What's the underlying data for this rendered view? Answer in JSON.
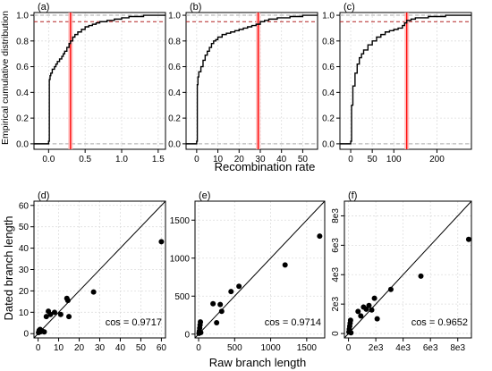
{
  "figure": {
    "top_ylabel": "Empirical cumulative distribution",
    "top_xlabel": "Recombination rate",
    "bottom_ylabel": "Dated branch length",
    "bottom_xlabel": "Raw branch length"
  },
  "colors": {
    "line": "#000000",
    "true_value": "#ff0000",
    "true_band": "#ffb3b3",
    "quantile_line": "#b22222",
    "reference": "#aaaaaa",
    "grid": "#dddddd"
  },
  "chart_data": [
    {
      "type": "line",
      "panel": "(a)",
      "xlim": [
        -0.2,
        1.6
      ],
      "ylim": [
        0,
        1.0
      ],
      "xticks": [
        0.0,
        0.5,
        1.0,
        1.5
      ],
      "xtick_labels": [
        "0.0",
        "0.5",
        "1.0",
        "1.5"
      ],
      "yticks": [
        0.0,
        0.2,
        0.4,
        0.6,
        0.8,
        1.0
      ],
      "ytick_labels": [
        "0.0",
        "0.2",
        "0.4",
        "0.6",
        "0.8",
        "1.0"
      ],
      "true_value": 0.3,
      "quantile_level": 0.95,
      "grid": true,
      "series": [
        {
          "x": [
            -0.2,
            0.0,
            0.0,
            0.01,
            0.02,
            0.03,
            0.05,
            0.08,
            0.1,
            0.12,
            0.15,
            0.18,
            0.2,
            0.22,
            0.25,
            0.28,
            0.3,
            0.33,
            0.36,
            0.4,
            0.45,
            0.5,
            0.55,
            0.6,
            0.65,
            0.7,
            0.75,
            0.8,
            0.85,
            0.9,
            0.95,
            1.0,
            1.05,
            1.1,
            1.2,
            1.3,
            1.4,
            1.5,
            1.6
          ],
          "y": [
            0.0,
            0.0,
            0.02,
            0.5,
            0.53,
            0.55,
            0.58,
            0.6,
            0.62,
            0.64,
            0.66,
            0.68,
            0.7,
            0.72,
            0.75,
            0.78,
            0.8,
            0.83,
            0.85,
            0.87,
            0.89,
            0.91,
            0.92,
            0.93,
            0.94,
            0.95,
            0.95,
            0.96,
            0.96,
            0.97,
            0.97,
            0.98,
            0.98,
            0.99,
            0.99,
            1.0,
            1.0,
            1.0,
            1.0
          ]
        }
      ]
    },
    {
      "type": "line",
      "panel": "(b)",
      "xlim": [
        -5,
        57
      ],
      "ylim": [
        0,
        1.0
      ],
      "xticks": [
        0,
        10,
        20,
        30,
        40,
        50
      ],
      "xtick_labels": [
        "0",
        "10",
        "20",
        "30",
        "40",
        "50"
      ],
      "yticks": [
        0.0,
        0.2,
        0.4,
        0.6,
        0.8,
        1.0
      ],
      "ytick_labels": [
        "0.0",
        "0.2",
        "0.4",
        "0.6",
        "0.8",
        "1.0"
      ],
      "true_value": 29,
      "quantile_level": 0.95,
      "grid": true,
      "series": [
        {
          "x": [
            -5,
            0,
            0,
            0.3,
            0.6,
            1,
            2,
            3,
            4,
            5,
            6,
            7,
            8,
            9,
            10,
            12,
            14,
            16,
            18,
            20,
            22,
            24,
            26,
            28,
            30,
            32,
            34,
            36,
            38,
            40,
            42,
            44,
            46,
            48,
            50,
            53,
            57
          ],
          "y": [
            0.0,
            0.0,
            0.02,
            0.46,
            0.52,
            0.56,
            0.6,
            0.65,
            0.69,
            0.72,
            0.75,
            0.78,
            0.8,
            0.81,
            0.83,
            0.85,
            0.86,
            0.87,
            0.88,
            0.89,
            0.9,
            0.91,
            0.92,
            0.93,
            0.95,
            0.96,
            0.97,
            0.97,
            0.98,
            0.98,
            0.98,
            0.99,
            0.99,
            0.99,
            1.0,
            1.0,
            1.0
          ]
        }
      ]
    },
    {
      "type": "line",
      "panel": "(c)",
      "xlim": [
        -25,
        280
      ],
      "ylim": [
        0,
        1.0
      ],
      "xticks": [
        0,
        50,
        100,
        200
      ],
      "xtick_labels": [
        "0",
        "50",
        "100",
        "200"
      ],
      "yticks": [
        0.0,
        0.2,
        0.4,
        0.6,
        0.8,
        1.0
      ],
      "ytick_labels": [
        "0.0",
        "0.2",
        "0.4",
        "0.6",
        "0.8",
        "1.0"
      ],
      "true_value": 130,
      "quantile_level": 0.95,
      "grid": true,
      "series": [
        {
          "x": [
            -25,
            0,
            0,
            2,
            5,
            10,
            15,
            20,
            25,
            30,
            40,
            50,
            60,
            70,
            80,
            90,
            100,
            110,
            120,
            125,
            130,
            140,
            150,
            160,
            180,
            200,
            220,
            240,
            260,
            280
          ],
          "y": [
            0.0,
            0.0,
            0.02,
            0.3,
            0.45,
            0.55,
            0.62,
            0.67,
            0.7,
            0.73,
            0.77,
            0.8,
            0.83,
            0.85,
            0.87,
            0.88,
            0.89,
            0.9,
            0.92,
            0.94,
            0.96,
            0.97,
            0.98,
            0.98,
            0.99,
            0.99,
            1.0,
            1.0,
            1.0,
            1.0
          ]
        }
      ]
    },
    {
      "type": "scatter",
      "panel": "(d)",
      "xlim": [
        -2,
        62
      ],
      "ylim": [
        -2,
        62
      ],
      "xticks": [
        0,
        10,
        20,
        30,
        40,
        50,
        60
      ],
      "xtick_labels": [
        "0",
        "10",
        "20",
        "30",
        "40",
        "50",
        "60"
      ],
      "yticks": [
        0,
        10,
        20,
        30,
        40,
        50,
        60
      ],
      "ytick_labels": [
        "0",
        "10",
        "20",
        "30",
        "40",
        "50",
        "60"
      ],
      "identity_line": true,
      "grid": true,
      "annotation": "cos =  0.9717",
      "points": {
        "x": [
          0.2,
          0.5,
          0.8,
          1.0,
          1.5,
          2.0,
          3.0,
          4.0,
          5.0,
          6.0,
          8.0,
          11.0,
          14.0,
          14.5,
          15.0,
          27.0,
          60.0
        ],
        "y": [
          0.5,
          1.5,
          0.8,
          2.0,
          1.0,
          1.2,
          0.8,
          8.0,
          10.5,
          9.0,
          10.0,
          9.0,
          16.5,
          15.5,
          8.0,
          19.5,
          43.0
        ]
      }
    },
    {
      "type": "scatter",
      "panel": "(e)",
      "xlim": [
        -50,
        1750
      ],
      "ylim": [
        -50,
        1750
      ],
      "xticks": [
        0,
        500,
        1000,
        1500
      ],
      "xtick_labels": [
        "0",
        "500",
        "1000",
        "1500"
      ],
      "yticks": [
        0,
        500,
        1000,
        1500
      ],
      "ytick_labels": [
        "0",
        "500",
        "1000",
        "1500"
      ],
      "identity_line": true,
      "grid": true,
      "annotation": "cos =  0.9714",
      "points": {
        "x": [
          5,
          10,
          15,
          20,
          25,
          30,
          200,
          250,
          300,
          320,
          450,
          560,
          1200,
          1680
        ],
        "y": [
          10,
          40,
          80,
          120,
          160,
          20,
          400,
          150,
          390,
          300,
          560,
          630,
          910,
          1290
        ]
      }
    },
    {
      "type": "scatter",
      "panel": "(f)",
      "xlim": [
        -300,
        9000
      ],
      "ylim": [
        -300,
        9000
      ],
      "xticks": [
        0,
        2000,
        4000,
        6000,
        8000
      ],
      "xtick_labels": [
        "0",
        "2e3",
        "4e3",
        "6e3",
        "8e3"
      ],
      "yticks": [
        0,
        2000,
        4000,
        6000,
        8000
      ],
      "ytick_labels": [
        "0",
        "2e3",
        "4e3",
        "6e3",
        "8e3"
      ],
      "identity_line": true,
      "grid": true,
      "annotation": "cos =  0.9652",
      "points": {
        "x": [
          30,
          60,
          90,
          120,
          150,
          180,
          700,
          900,
          1100,
          1300,
          1500,
          1700,
          1900,
          2100,
          3100,
          5300,
          8800
        ],
        "y": [
          100,
          300,
          500,
          700,
          900,
          50,
          1500,
          1200,
          1800,
          1650,
          1900,
          1600,
          2400,
          1000,
          3000,
          3900,
          6400
        ]
      }
    }
  ]
}
